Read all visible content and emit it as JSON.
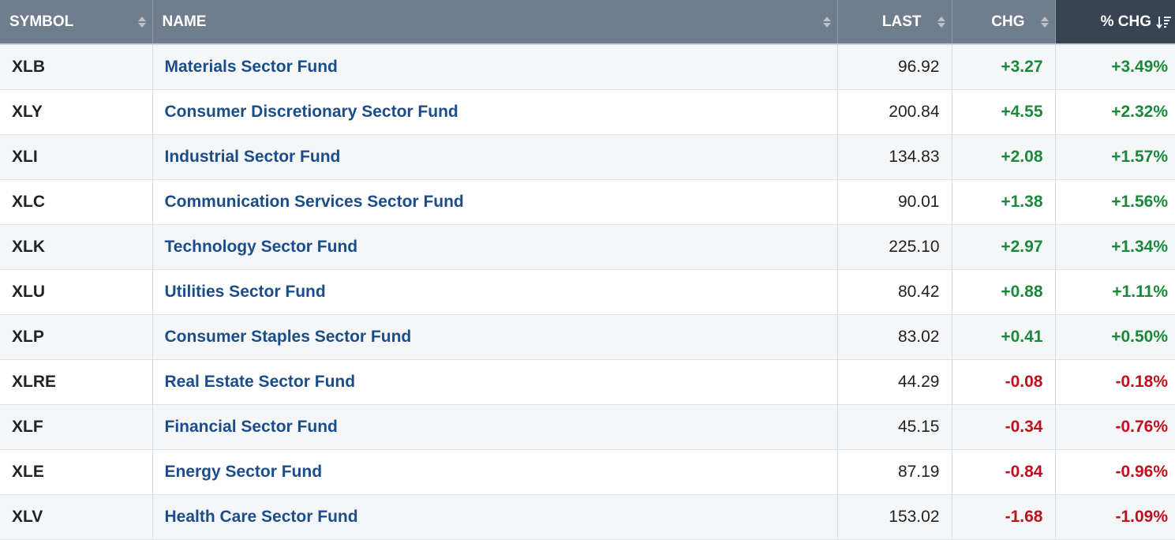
{
  "table": {
    "headers": {
      "symbol": "SYMBOL",
      "name": "NAME",
      "last": "LAST",
      "chg": "CHG",
      "pct_chg": "% CHG"
    },
    "sort": {
      "column": "pct_chg",
      "direction": "descending"
    },
    "colors": {
      "header_bg": "#6f7d8c",
      "active_header_bg": "#394453",
      "positive": "#1a8a3a",
      "negative": "#c0101e",
      "link": "#1a4d8a"
    },
    "rows": [
      {
        "symbol": "XLB",
        "name": "Materials Sector Fund",
        "last": "96.92",
        "chg": "+3.27",
        "pct": "+3.49%",
        "dir": "up"
      },
      {
        "symbol": "XLY",
        "name": "Consumer Discretionary Sector Fund",
        "last": "200.84",
        "chg": "+4.55",
        "pct": "+2.32%",
        "dir": "up"
      },
      {
        "symbol": "XLI",
        "name": "Industrial Sector Fund",
        "last": "134.83",
        "chg": "+2.08",
        "pct": "+1.57%",
        "dir": "up"
      },
      {
        "symbol": "XLC",
        "name": "Communication Services Sector Fund",
        "last": "90.01",
        "chg": "+1.38",
        "pct": "+1.56%",
        "dir": "up"
      },
      {
        "symbol": "XLK",
        "name": "Technology Sector Fund",
        "last": "225.10",
        "chg": "+2.97",
        "pct": "+1.34%",
        "dir": "up"
      },
      {
        "symbol": "XLU",
        "name": "Utilities Sector Fund",
        "last": "80.42",
        "chg": "+0.88",
        "pct": "+1.11%",
        "dir": "up"
      },
      {
        "symbol": "XLP",
        "name": "Consumer Staples Sector Fund",
        "last": "83.02",
        "chg": "+0.41",
        "pct": "+0.50%",
        "dir": "up"
      },
      {
        "symbol": "XLRE",
        "name": "Real Estate Sector Fund",
        "last": "44.29",
        "chg": "-0.08",
        "pct": "-0.18%",
        "dir": "down"
      },
      {
        "symbol": "XLF",
        "name": "Financial Sector Fund",
        "last": "45.15",
        "chg": "-0.34",
        "pct": "-0.76%",
        "dir": "down"
      },
      {
        "symbol": "XLE",
        "name": "Energy Sector Fund",
        "last": "87.19",
        "chg": "-0.84",
        "pct": "-0.96%",
        "dir": "down"
      },
      {
        "symbol": "XLV",
        "name": "Health Care Sector Fund",
        "last": "153.02",
        "chg": "-1.68",
        "pct": "-1.09%",
        "dir": "down"
      }
    ]
  }
}
